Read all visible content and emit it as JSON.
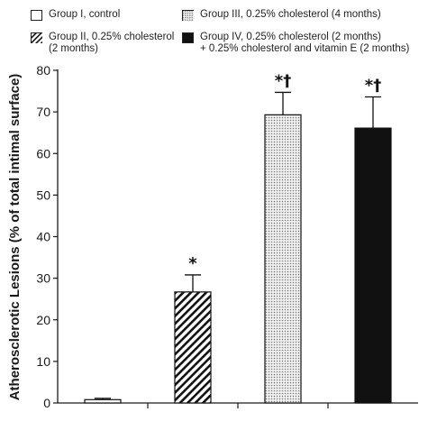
{
  "chart_data": {
    "type": "bar",
    "ylabel": "Atherosclerotic Lesions (% of total intimal surface)",
    "ylim": [
      0,
      80
    ],
    "yticks": [
      0,
      10,
      20,
      30,
      40,
      50,
      60,
      70,
      80
    ],
    "grid": false,
    "legend_position": "top",
    "series": [
      {
        "name": "Group I, control",
        "value": 0.8,
        "error": 0.3,
        "annotation": "",
        "pattern": "white"
      },
      {
        "name": "Group II, 0.25% cholesterol\n(2 months)",
        "value": 26.7,
        "error": 4.1,
        "annotation": "*",
        "pattern": "hatched"
      },
      {
        "name": "Group III, 0.25% cholesterol (4 months)",
        "value": 69.3,
        "error": 5.4,
        "annotation": "*†",
        "pattern": "dotted"
      },
      {
        "name": "Group IV, 0.25% cholesterol (2 months)\n+ 0.25% cholesterol and vitamin E (2 months)",
        "value": 66.1,
        "error": 7.5,
        "annotation": "*†",
        "pattern": "black"
      }
    ]
  },
  "colors": {
    "axis": "#1a1a1a",
    "black_bar": "#111111",
    "dot_fill": "#d4d4d4"
  }
}
